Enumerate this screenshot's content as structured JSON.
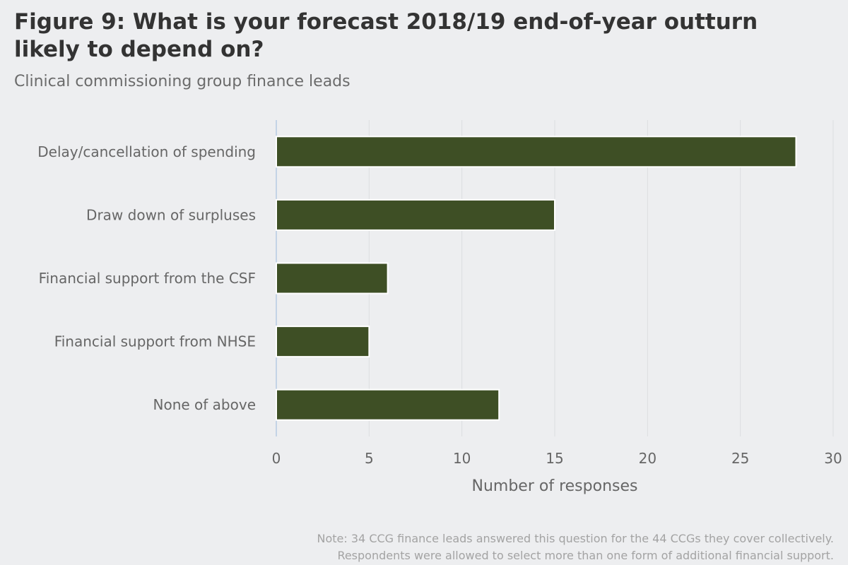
{
  "chart_data": {
    "type": "bar",
    "orientation": "horizontal",
    "title": "Figure 9: What is your forecast 2018/19 end-of-year outturn likely to depend on?",
    "subtitle": "Clinical commissioning group finance leads",
    "categories": [
      "Delay/cancellation of spending",
      "Draw down of surpluses",
      "Financial support from the CSF",
      "Financial support from NHSE",
      "None of above"
    ],
    "values": [
      28,
      15,
      6,
      5,
      12
    ],
    "xlabel": "Number of responses",
    "ylabel": "",
    "xlim": [
      0,
      30
    ],
    "xticks": [
      "0",
      "5",
      "10",
      "15",
      "20",
      "25",
      "30"
    ],
    "grid": true,
    "bar_color": "#3e4f25",
    "note_lines": [
      "Note: 34 CCG finance leads answered this question for the 44 CCGs they cover collectively.",
      "Respondents were allowed to select more than one form of additional financial support."
    ]
  }
}
